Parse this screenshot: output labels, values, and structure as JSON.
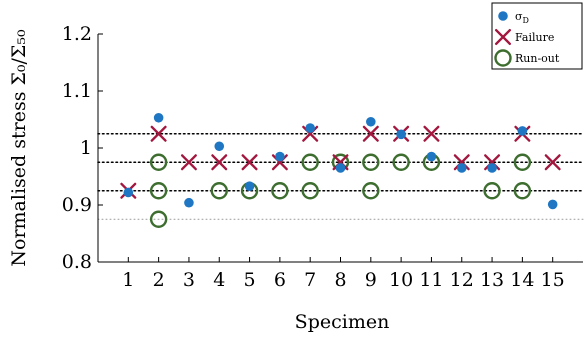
{
  "chart_data": {
    "type": "scatter",
    "xlabel": "Specimen",
    "ylabel": "Normalised stress Σ₀/Σ₅₀",
    "xlim": [
      0,
      16
    ],
    "ylim": [
      0.8,
      1.2
    ],
    "x_ticks": [
      1,
      2,
      3,
      4,
      5,
      6,
      7,
      8,
      9,
      10,
      11,
      12,
      13,
      14,
      15
    ],
    "y_ticks": [
      0.8,
      0.9,
      1,
      1.1,
      1.2
    ],
    "y_tick_labels": [
      "0.8",
      "0.9",
      "1",
      "1.1",
      "1.2"
    ],
    "grid": false,
    "legend_position": "top-right",
    "reference_lines": [
      {
        "y": 0.875,
        "style": "light-dotted"
      },
      {
        "y": 0.925,
        "style": "dotted"
      },
      {
        "y": 0.975,
        "style": "dotted"
      },
      {
        "y": 1.025,
        "style": "dotted"
      }
    ],
    "series": [
      {
        "name": "σ_D",
        "marker": "filled-circle",
        "color": "#1f77c4",
        "points": [
          [
            1,
            0.922
          ],
          [
            2,
            1.053
          ],
          [
            3,
            0.904
          ],
          [
            4,
            1.003
          ],
          [
            5,
            0.933
          ],
          [
            6,
            0.985
          ],
          [
            7,
            1.035
          ],
          [
            8,
            0.965
          ],
          [
            9,
            1.046
          ],
          [
            10,
            1.024
          ],
          [
            11,
            0.985
          ],
          [
            12,
            0.965
          ],
          [
            13,
            0.965
          ],
          [
            14,
            1.03
          ],
          [
            15,
            0.901
          ]
        ]
      },
      {
        "name": "Failure",
        "marker": "cross",
        "color": "#a3173f",
        "points": [
          [
            1,
            0.925
          ],
          [
            2,
            1.025
          ],
          [
            3,
            0.975
          ],
          [
            4,
            0.975
          ],
          [
            5,
            0.975
          ],
          [
            6,
            0.975
          ],
          [
            7,
            1.025
          ],
          [
            8,
            0.975
          ],
          [
            9,
            1.025
          ],
          [
            10,
            1.025
          ],
          [
            11,
            1.025
          ],
          [
            12,
            0.975
          ],
          [
            13,
            0.975
          ],
          [
            14,
            1.025
          ],
          [
            15,
            0.975
          ]
        ]
      },
      {
        "name": "Run-out",
        "marker": "open-circle",
        "color": "#3d6e2f",
        "points": [
          [
            2,
            0.875
          ],
          [
            2,
            0.925
          ],
          [
            2,
            0.975
          ],
          [
            4,
            0.925
          ],
          [
            5,
            0.925
          ],
          [
            6,
            0.925
          ],
          [
            7,
            0.925
          ],
          [
            7,
            0.975
          ],
          [
            8,
            0.975
          ],
          [
            9,
            0.925
          ],
          [
            9,
            0.975
          ],
          [
            10,
            0.975
          ],
          [
            11,
            0.975
          ],
          [
            13,
            0.925
          ],
          [
            14,
            0.925
          ],
          [
            14,
            0.975
          ]
        ]
      }
    ]
  }
}
